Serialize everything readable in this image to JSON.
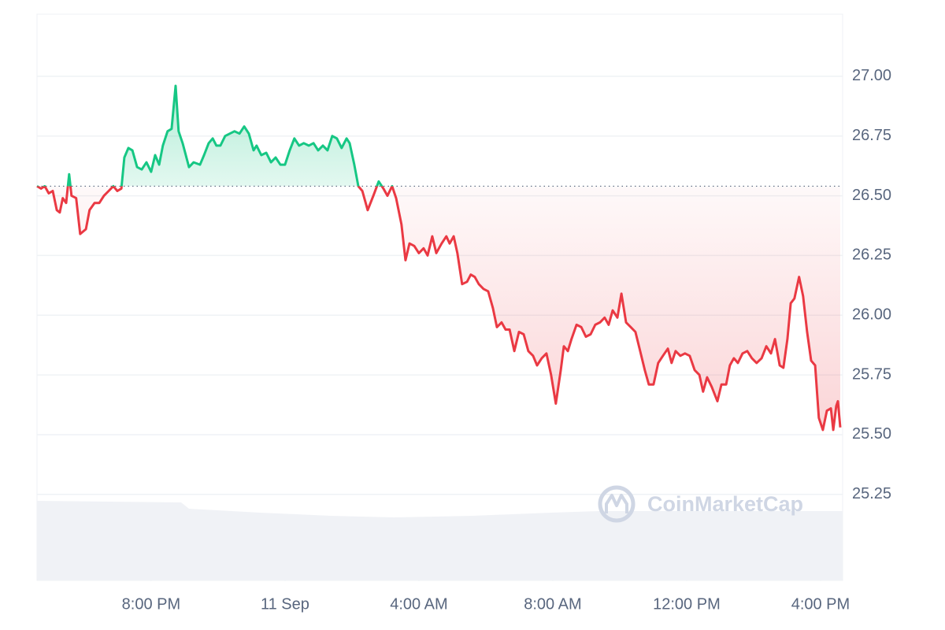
{
  "chart_data": {
    "type": "line",
    "x": [
      -7.41,
      -7.29,
      -7.18,
      -7.06,
      -6.94,
      -6.82,
      -6.73,
      -6.64,
      -6.54,
      -6.45,
      -6.38,
      -6.24,
      -6.12,
      -5.95,
      -5.84,
      -5.69,
      -5.55,
      -5.41,
      -5.27,
      -5.13,
      -5.01,
      -4.89,
      -4.8,
      -4.68,
      -4.56,
      -4.42,
      -4.28,
      -4.14,
      -4.0,
      -3.88,
      -3.76,
      -3.65,
      -3.51,
      -3.39,
      -3.27,
      -3.18,
      -3.06,
      -2.87,
      -2.73,
      -2.54,
      -2.42,
      -2.28,
      -2.16,
      -2.05,
      -1.93,
      -1.79,
      -1.65,
      -1.51,
      -1.36,
      -1.22,
      -1.08,
      -0.94,
      -0.85,
      -0.71,
      -0.56,
      -0.42,
      -0.28,
      -0.14,
      0,
      0.14,
      0.28,
      0.42,
      0.56,
      0.71,
      0.85,
      0.99,
      1.13,
      1.27,
      1.41,
      1.55,
      1.69,
      1.84,
      1.93,
      2.07,
      2.19,
      2.31,
      2.47,
      2.64,
      2.8,
      2.94,
      3.06,
      3.2,
      3.32,
      3.48,
      3.6,
      3.72,
      3.86,
      4.0,
      4.14,
      4.26,
      4.4,
      4.52,
      4.68,
      4.82,
      4.92,
      5.04,
      5.15,
      5.29,
      5.44,
      5.55,
      5.67,
      5.79,
      5.93,
      6.07,
      6.21,
      6.33,
      6.47,
      6.59,
      6.71,
      6.85,
      6.99,
      7.13,
      7.27,
      7.41,
      7.53,
      7.67,
      7.81,
      7.95,
      8.09,
      8.24,
      8.33,
      8.45,
      8.56,
      8.71,
      8.85,
      8.99,
      9.13,
      9.27,
      9.41,
      9.55,
      9.67,
      9.79,
      9.93,
      10.05,
      10.19,
      10.33,
      10.47,
      10.61,
      10.75,
      10.87,
      11.01,
      11.15,
      11.29,
      11.44,
      11.55,
      11.67,
      11.81,
      11.95,
      12.09,
      12.24,
      12.38,
      12.49,
      12.61,
      12.75,
      12.92,
      13.04,
      13.18,
      13.29,
      13.41,
      13.53,
      13.67,
      13.81,
      13.95,
      14.09,
      14.24,
      14.38,
      14.52,
      14.64,
      14.78,
      14.89,
      15.01,
      15.11,
      15.22,
      15.36,
      15.48,
      15.6,
      15.72,
      15.84,
      15.95,
      16.07,
      16.19,
      16.31,
      16.38,
      16.47,
      16.52,
      16.59
    ],
    "values": [
      26.54,
      26.53,
      26.54,
      26.51,
      26.52,
      26.44,
      26.43,
      26.49,
      26.47,
      26.59,
      26.5,
      26.49,
      26.34,
      26.36,
      26.44,
      26.47,
      26.47,
      26.5,
      26.52,
      26.54,
      26.52,
      26.53,
      26.66,
      26.7,
      26.69,
      26.62,
      26.61,
      26.64,
      26.6,
      26.67,
      26.63,
      26.71,
      26.77,
      26.78,
      26.96,
      26.77,
      26.72,
      26.62,
      26.64,
      26.63,
      26.67,
      26.72,
      26.74,
      26.71,
      26.71,
      26.75,
      26.76,
      26.77,
      26.76,
      26.79,
      26.76,
      26.69,
      26.71,
      26.67,
      26.68,
      26.64,
      26.66,
      26.63,
      26.63,
      26.69,
      26.74,
      26.71,
      26.72,
      26.71,
      26.72,
      26.69,
      26.71,
      26.69,
      26.75,
      26.74,
      26.7,
      26.74,
      26.72,
      26.63,
      26.54,
      26.52,
      26.44,
      26.5,
      26.56,
      26.53,
      26.5,
      26.54,
      26.49,
      26.38,
      26.23,
      26.3,
      26.29,
      26.26,
      26.28,
      26.25,
      26.33,
      26.26,
      26.3,
      26.33,
      26.3,
      26.33,
      26.26,
      26.13,
      26.14,
      26.17,
      26.16,
      26.13,
      26.11,
      26.1,
      26.03,
      25.95,
      25.97,
      25.94,
      25.94,
      25.85,
      25.93,
      25.92,
      25.85,
      25.83,
      25.79,
      25.82,
      25.84,
      25.75,
      25.63,
      25.77,
      25.87,
      25.85,
      25.9,
      25.96,
      25.95,
      25.91,
      25.92,
      25.96,
      25.97,
      25.99,
      25.96,
      26.02,
      25.99,
      26.09,
      25.97,
      25.95,
      25.93,
      25.85,
      25.77,
      25.71,
      25.71,
      25.8,
      25.83,
      25.86,
      25.8,
      25.85,
      25.83,
      25.84,
      25.83,
      25.77,
      25.75,
      25.68,
      25.74,
      25.7,
      25.64,
      25.71,
      25.71,
      25.79,
      25.82,
      25.8,
      25.84,
      25.85,
      25.82,
      25.8,
      25.82,
      25.87,
      25.84,
      25.9,
      25.79,
      25.78,
      25.9,
      26.05,
      26.07,
      26.16,
      26.08,
      25.93,
      25.81,
      25.79,
      25.57,
      25.52,
      25.6,
      25.61,
      25.52,
      25.62,
      25.64,
      25.53
    ],
    "baseline": 26.54,
    "up_color": "#16c784",
    "down_color": "#ea3943",
    "xlim": [
      -7.41,
      16.66
    ],
    "ylim": [
      24.89,
      27.26
    ],
    "xticks": [
      {
        "value": -4,
        "label": "8:00 PM"
      },
      {
        "value": 0,
        "label": "11 Sep"
      },
      {
        "value": 4,
        "label": "4:00 AM"
      },
      {
        "value": 8,
        "label": "8:00 AM"
      },
      {
        "value": 12,
        "label": "12:00 PM"
      },
      {
        "value": 16,
        "label": "4:00 PM"
      }
    ],
    "yticks": [
      {
        "value": 25.25,
        "label": "25.25"
      },
      {
        "value": 25.5,
        "label": "25.50"
      },
      {
        "value": 25.75,
        "label": "25.75"
      },
      {
        "value": 26,
        "label": "26.00"
      },
      {
        "value": 26.25,
        "label": "26.25"
      },
      {
        "value": 26.5,
        "label": "26.50"
      },
      {
        "value": 26.75,
        "label": "26.75"
      },
      {
        "value": 27,
        "label": "27.00"
      }
    ],
    "grid": true,
    "watermark": "CoinMarketCap"
  }
}
